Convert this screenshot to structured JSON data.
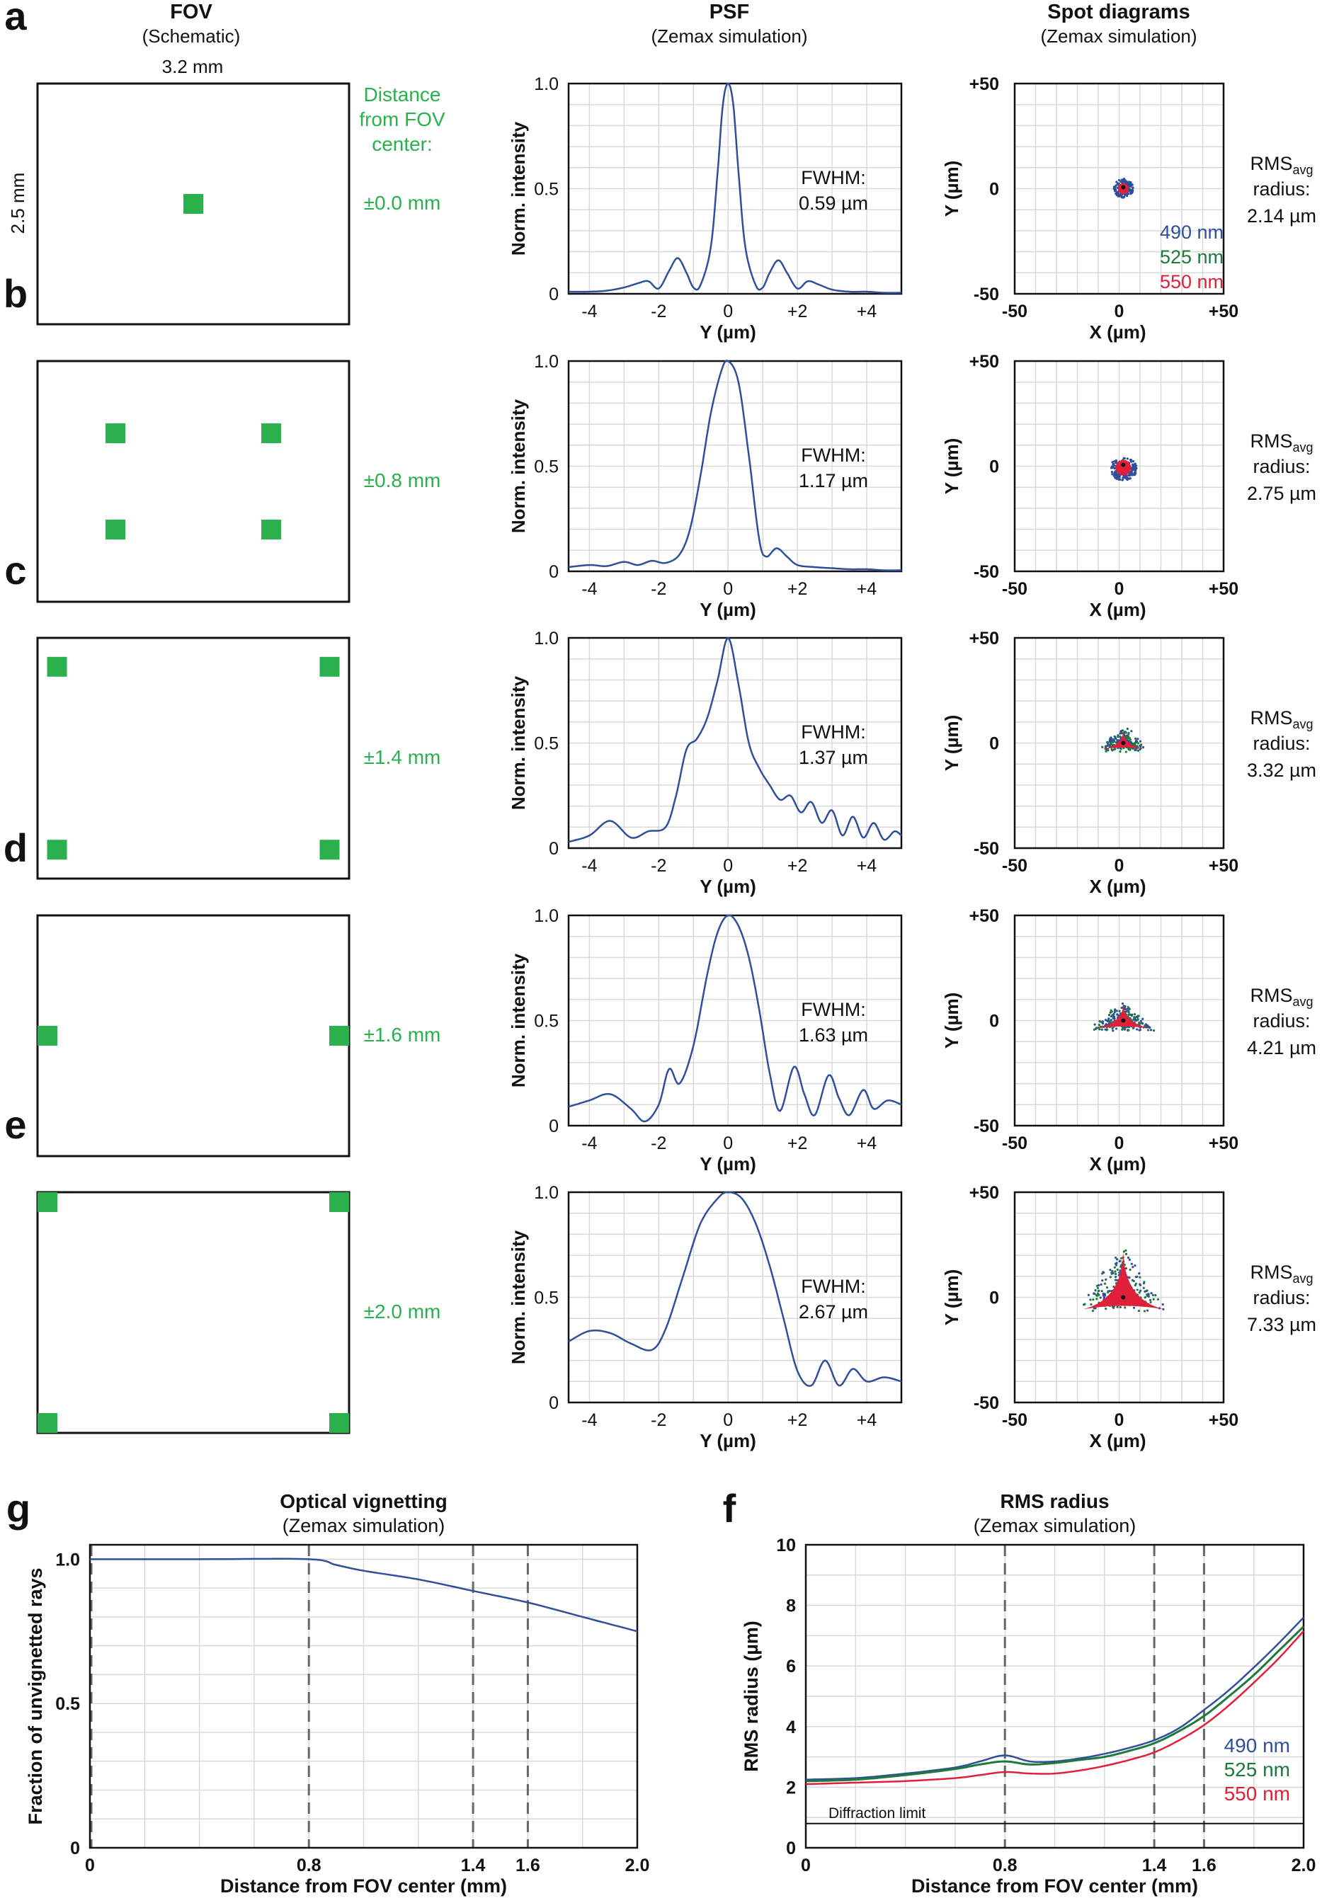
{
  "headers": {
    "fov_title": "FOV",
    "fov_sub": "(Schematic)",
    "psf_title": "PSF",
    "psf_sub": "(Zemax simulation)",
    "spot_title": "Spot diagrams",
    "spot_sub": "(Zemax simulation)"
  },
  "fov_dims": {
    "width": "3.2 mm",
    "height": "2.5 mm"
  },
  "distance_label": [
    "Distance",
    "from FOV",
    "center:"
  ],
  "colors": {
    "green": "#2bb04e",
    "blue": "#2f4f9a",
    "dkgreen": "#1c7a3a",
    "red": "#e0203a",
    "grid": "#d9d9d9"
  },
  "wavelengths": [
    "490 nm",
    "525 nm",
    "550 nm"
  ],
  "rms_label": {
    "prefix": "RMS",
    "sub": "avg",
    "line2": "radius:"
  },
  "psf_axes": {
    "ylabel": "Norm. intensity",
    "xlabel": "Y (µm)",
    "yticks": [
      "0",
      "0.5",
      "1.0"
    ],
    "xticks": [
      "-4",
      "-2",
      "0",
      "+2",
      "+4"
    ],
    "fwhm_label": "FWHM:"
  },
  "spot_axes": {
    "ylabel": "Y (µm)",
    "xlabel": "X (µm)",
    "yticks": [
      "+50",
      "0",
      "-50"
    ],
    "xticks": [
      "-50",
      "0",
      "+50"
    ]
  },
  "rows": [
    {
      "letter": "a",
      "distance": "±0.0 mm",
      "fwhm": "0.59 µm",
      "rms": "2.14 µm"
    },
    {
      "letter": "b",
      "distance": "±0.8 mm",
      "fwhm": "1.17 µm",
      "rms": "2.75 µm"
    },
    {
      "letter": "c",
      "distance": "±1.4 mm",
      "fwhm": "1.37 µm",
      "rms": "3.32 µm"
    },
    {
      "letter": "d",
      "distance": "±1.6 mm",
      "fwhm": "1.63 µm",
      "rms": "4.21 µm"
    },
    {
      "letter": "e",
      "distance": "±2.0 mm",
      "fwhm": "2.67 µm",
      "rms": "7.33 µm"
    }
  ],
  "chart_data": [
    {
      "id": "psf_a",
      "type": "line",
      "title": "PSF",
      "xlabel": "Y (µm)",
      "ylabel": "Norm. intensity",
      "xlim": [
        -4.6,
        5
      ],
      "ylim": [
        0,
        1
      ],
      "x": [
        -4.6,
        -4,
        -3.5,
        -3,
        -2.6,
        -2.3,
        -2,
        -1.7,
        -1.45,
        -1.2,
        -1,
        -0.8,
        -0.5,
        -0.3,
        -0.15,
        0,
        0.15,
        0.3,
        0.5,
        0.8,
        1,
        1.2,
        1.45,
        1.7,
        2,
        2.3,
        2.6,
        3,
        3.5,
        4,
        4.5,
        5
      ],
      "series": [
        {
          "name": "PSF",
          "values": [
            0.01,
            0.01,
            0.015,
            0.03,
            0.05,
            0.06,
            0.025,
            0.11,
            0.17,
            0.1,
            0.03,
            0.04,
            0.22,
            0.58,
            0.9,
            1.0,
            0.9,
            0.58,
            0.22,
            0.04,
            0.03,
            0.1,
            0.16,
            0.1,
            0.025,
            0.06,
            0.045,
            0.02,
            0.01,
            0.01,
            0.005,
            0.005
          ]
        }
      ]
    },
    {
      "id": "psf_b",
      "type": "line",
      "title": "PSF",
      "xlabel": "Y (µm)",
      "ylabel": "Norm. intensity",
      "xlim": [
        -4.6,
        5
      ],
      "ylim": [
        0,
        1
      ],
      "x": [
        -4.6,
        -4,
        -3.5,
        -3,
        -2.6,
        -2.2,
        -1.8,
        -1.4,
        -1.1,
        -0.8,
        -0.5,
        -0.2,
        0,
        0.3,
        0.6,
        0.9,
        1.1,
        1.4,
        1.7,
        2,
        2.5,
        3,
        3.5,
        4,
        4.5,
        5
      ],
      "series": [
        {
          "name": "PSF",
          "values": [
            0.02,
            0.03,
            0.025,
            0.045,
            0.03,
            0.05,
            0.04,
            0.08,
            0.2,
            0.45,
            0.75,
            0.95,
            1.0,
            0.9,
            0.55,
            0.15,
            0.07,
            0.11,
            0.07,
            0.03,
            0.02,
            0.015,
            0.01,
            0.01,
            0.005,
            0.005
          ]
        }
      ]
    },
    {
      "id": "psf_c",
      "type": "line",
      "title": "PSF",
      "xlabel": "Y (µm)",
      "ylabel": "Norm. intensity",
      "xlim": [
        -4.6,
        5
      ],
      "ylim": [
        0,
        1
      ],
      "x": [
        -4.6,
        -4,
        -3.4,
        -2.8,
        -2.3,
        -1.8,
        -1.5,
        -1.2,
        -0.9,
        -0.6,
        -0.3,
        0,
        0.3,
        0.6,
        0.9,
        1.2,
        1.5,
        1.8,
        2.1,
        2.4,
        2.7,
        3.0,
        3.3,
        3.6,
        3.9,
        4.2,
        4.5,
        4.8,
        5
      ],
      "series": [
        {
          "name": "PSF",
          "values": [
            0.03,
            0.06,
            0.13,
            0.05,
            0.08,
            0.1,
            0.25,
            0.47,
            0.52,
            0.62,
            0.8,
            1.0,
            0.78,
            0.5,
            0.38,
            0.3,
            0.23,
            0.25,
            0.17,
            0.22,
            0.12,
            0.18,
            0.06,
            0.15,
            0.05,
            0.12,
            0.04,
            0.08,
            0.06
          ]
        }
      ]
    },
    {
      "id": "psf_d",
      "type": "line",
      "title": "PSF",
      "xlabel": "Y (µm)",
      "ylabel": "Norm. intensity",
      "xlim": [
        -4.6,
        5
      ],
      "ylim": [
        0,
        1
      ],
      "x": [
        -4.6,
        -4,
        -3.4,
        -2.8,
        -2.4,
        -2,
        -1.7,
        -1.4,
        -1,
        -0.6,
        -0.3,
        0,
        0.3,
        0.6,
        0.9,
        1.2,
        1.5,
        1.9,
        2.2,
        2.5,
        2.9,
        3.2,
        3.5,
        3.9,
        4.2,
        4.6,
        5
      ],
      "series": [
        {
          "name": "PSF",
          "values": [
            0.09,
            0.12,
            0.15,
            0.08,
            0.02,
            0.1,
            0.27,
            0.2,
            0.38,
            0.72,
            0.92,
            1.0,
            0.95,
            0.8,
            0.55,
            0.25,
            0.07,
            0.28,
            0.15,
            0.05,
            0.24,
            0.13,
            0.05,
            0.17,
            0.08,
            0.12,
            0.1
          ]
        }
      ]
    },
    {
      "id": "psf_e",
      "type": "line",
      "title": "PSF",
      "xlabel": "Y (µm)",
      "ylabel": "Norm. intensity",
      "xlim": [
        -4.6,
        5
      ],
      "ylim": [
        0,
        1
      ],
      "x": [
        -4.6,
        -4,
        -3.4,
        -2.8,
        -2.2,
        -1.8,
        -1.3,
        -0.8,
        -0.3,
        0,
        0.4,
        0.8,
        1.2,
        1.6,
        2,
        2.4,
        2.8,
        3.2,
        3.6,
        4,
        4.5,
        5
      ],
      "series": [
        {
          "name": "PSF",
          "values": [
            0.29,
            0.34,
            0.33,
            0.28,
            0.25,
            0.35,
            0.6,
            0.85,
            0.97,
            1.0,
            0.97,
            0.85,
            0.65,
            0.4,
            0.15,
            0.08,
            0.2,
            0.08,
            0.16,
            0.1,
            0.12,
            0.1
          ]
        }
      ]
    },
    {
      "id": "vignetting",
      "type": "line",
      "title": "Optical vignetting",
      "subtitle": "(Zemax simulation)",
      "xlabel": "Distance from FOV center (mm)",
      "ylabel": "Fraction of unvignetted rays",
      "xlim": [
        0,
        2.0
      ],
      "ylim": [
        0,
        1.05
      ],
      "xticks": [
        "0",
        "0.8",
        "1.4",
        "1.6",
        "2.0"
      ],
      "yticks": [
        "0",
        "0.5",
        "1.0"
      ],
      "dashed_x": [
        0,
        0.8,
        1.4,
        1.6
      ],
      "x": [
        0,
        0.4,
        0.8,
        0.9,
        1.0,
        1.2,
        1.4,
        1.6,
        1.8,
        2.0
      ],
      "series": [
        {
          "name": "Fraction",
          "values": [
            1.0,
            1.0,
            1.0,
            0.98,
            0.96,
            0.93,
            0.89,
            0.85,
            0.8,
            0.75
          ]
        }
      ]
    },
    {
      "id": "rms_radius",
      "type": "line",
      "title": "RMS radius",
      "subtitle": "(Zemax simulation)",
      "xlabel": "Distance from FOV center (mm)",
      "ylabel": "RMS radius (µm)",
      "xlim": [
        0,
        2.0
      ],
      "ylim": [
        0,
        10
      ],
      "xticks": [
        "0",
        "0.8",
        "1.4",
        "1.6",
        "2.0"
      ],
      "yticks": [
        "0",
        "2",
        "4",
        "6",
        "8",
        "10"
      ],
      "dashed_x": [
        0.8,
        1.4,
        1.6
      ],
      "annotation": "Diffraction limit",
      "x": [
        0,
        0.2,
        0.4,
        0.6,
        0.7,
        0.8,
        0.9,
        1.0,
        1.1,
        1.2,
        1.3,
        1.4,
        1.5,
        1.6,
        1.7,
        1.8,
        1.9,
        2.0
      ],
      "series": [
        {
          "name": "490 nm",
          "values": [
            2.25,
            2.3,
            2.45,
            2.65,
            2.85,
            3.05,
            2.85,
            2.85,
            2.95,
            3.1,
            3.3,
            3.55,
            3.95,
            4.55,
            5.2,
            5.95,
            6.75,
            7.6
          ]
        },
        {
          "name": "525 nm",
          "values": [
            2.2,
            2.25,
            2.4,
            2.6,
            2.75,
            2.85,
            2.75,
            2.8,
            2.9,
            3.0,
            3.2,
            3.45,
            3.85,
            4.35,
            5.0,
            5.7,
            6.5,
            7.3
          ]
        },
        {
          "name": "550 nm",
          "values": [
            2.1,
            2.15,
            2.2,
            2.3,
            2.4,
            2.5,
            2.45,
            2.45,
            2.55,
            2.7,
            2.9,
            3.15,
            3.55,
            4.05,
            4.7,
            5.45,
            6.25,
            7.15
          ]
        },
        {
          "name": "Diffraction limit",
          "values": [
            0.8,
            0.8,
            0.8,
            0.8,
            0.8,
            0.8,
            0.8,
            0.8,
            0.8,
            0.8,
            0.8,
            0.8,
            0.8,
            0.8,
            0.8,
            0.8,
            0.8,
            0.8
          ]
        }
      ]
    }
  ],
  "bottom_letters": {
    "left": "g",
    "right": "f"
  }
}
